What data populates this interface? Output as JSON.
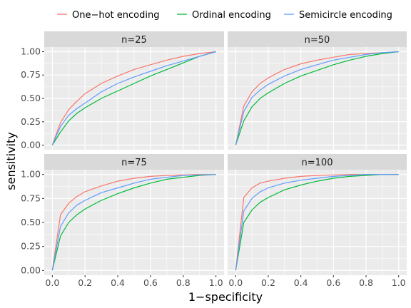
{
  "chart_data": {
    "type": "line",
    "title": "",
    "xlabel": "1−specificity",
    "ylabel": "sensitivity",
    "xlim": [
      0,
      1
    ],
    "ylim": [
      0,
      1
    ],
    "grid": true,
    "legend_position": "top",
    "x_ticks": [
      "0.0",
      "0.2",
      "0.4",
      "0.6",
      "0.8",
      "1.0"
    ],
    "y_ticks": [
      "0.00",
      "0.25",
      "0.50",
      "0.75",
      "1.00"
    ],
    "legend": [
      {
        "name": "One−hot encoding",
        "color": "#F8766D"
      },
      {
        "name": "Ordinal encoding",
        "color": "#00BA38"
      },
      {
        "name": "Semicircle encoding",
        "color": "#619CFF"
      }
    ],
    "x": [
      0,
      0.05,
      0.1,
      0.15,
      0.2,
      0.3,
      0.4,
      0.5,
      0.6,
      0.7,
      0.8,
      0.9,
      1.0
    ],
    "panels": [
      {
        "label": "n=25",
        "series": [
          {
            "name": "One−hot encoding",
            "values": [
              0,
              0.24,
              0.38,
              0.47,
              0.55,
              0.66,
              0.74,
              0.81,
              0.86,
              0.91,
              0.95,
              0.98,
              1.0
            ]
          },
          {
            "name": "Ordinal encoding",
            "values": [
              0,
              0.14,
              0.26,
              0.34,
              0.4,
              0.5,
              0.58,
              0.66,
              0.74,
              0.81,
              0.88,
              0.95,
              1.0
            ]
          },
          {
            "name": "Semicircle encoding",
            "values": [
              0,
              0.2,
              0.32,
              0.39,
              0.45,
              0.57,
              0.66,
              0.73,
              0.79,
              0.85,
              0.9,
              0.95,
              1.0
            ]
          }
        ]
      },
      {
        "label": "n=50",
        "series": [
          {
            "name": "One−hot encoding",
            "values": [
              0,
              0.42,
              0.57,
              0.66,
              0.72,
              0.81,
              0.87,
              0.91,
              0.94,
              0.97,
              0.98,
              0.99,
              1.0
            ]
          },
          {
            "name": "Ordinal encoding",
            "values": [
              0,
              0.26,
              0.41,
              0.5,
              0.56,
              0.66,
              0.74,
              0.8,
              0.86,
              0.91,
              0.95,
              0.98,
              1.0
            ]
          },
          {
            "name": "Semicircle encoding",
            "values": [
              0,
              0.36,
              0.51,
              0.59,
              0.65,
              0.74,
              0.81,
              0.86,
              0.91,
              0.94,
              0.97,
              0.99,
              1.0
            ]
          }
        ]
      },
      {
        "label": "n=75",
        "series": [
          {
            "name": "One−hot encoding",
            "values": [
              0,
              0.58,
              0.7,
              0.77,
              0.82,
              0.88,
              0.93,
              0.96,
              0.98,
              0.99,
              0.995,
              1.0,
              1.0
            ]
          },
          {
            "name": "Ordinal encoding",
            "values": [
              0,
              0.36,
              0.5,
              0.58,
              0.64,
              0.73,
              0.8,
              0.86,
              0.91,
              0.95,
              0.97,
              0.99,
              1.0
            ]
          },
          {
            "name": "Semicircle encoding",
            "values": [
              0,
              0.46,
              0.6,
              0.68,
              0.73,
              0.81,
              0.86,
              0.91,
              0.95,
              0.97,
              0.99,
              0.995,
              1.0
            ]
          }
        ]
      },
      {
        "label": "n=100",
        "series": [
          {
            "name": "One−hot encoding",
            "values": [
              0,
              0.76,
              0.86,
              0.91,
              0.93,
              0.96,
              0.98,
              0.99,
              0.995,
              1.0,
              1.0,
              1.0,
              1.0
            ]
          },
          {
            "name": "Ordinal encoding",
            "values": [
              0,
              0.5,
              0.63,
              0.71,
              0.76,
              0.84,
              0.89,
              0.93,
              0.96,
              0.98,
              0.99,
              1.0,
              1.0
            ]
          },
          {
            "name": "Semicircle encoding",
            "values": [
              0,
              0.62,
              0.75,
              0.82,
              0.86,
              0.91,
              0.94,
              0.96,
              0.98,
              0.99,
              1.0,
              1.0,
              1.0
            ]
          }
        ]
      }
    ]
  }
}
